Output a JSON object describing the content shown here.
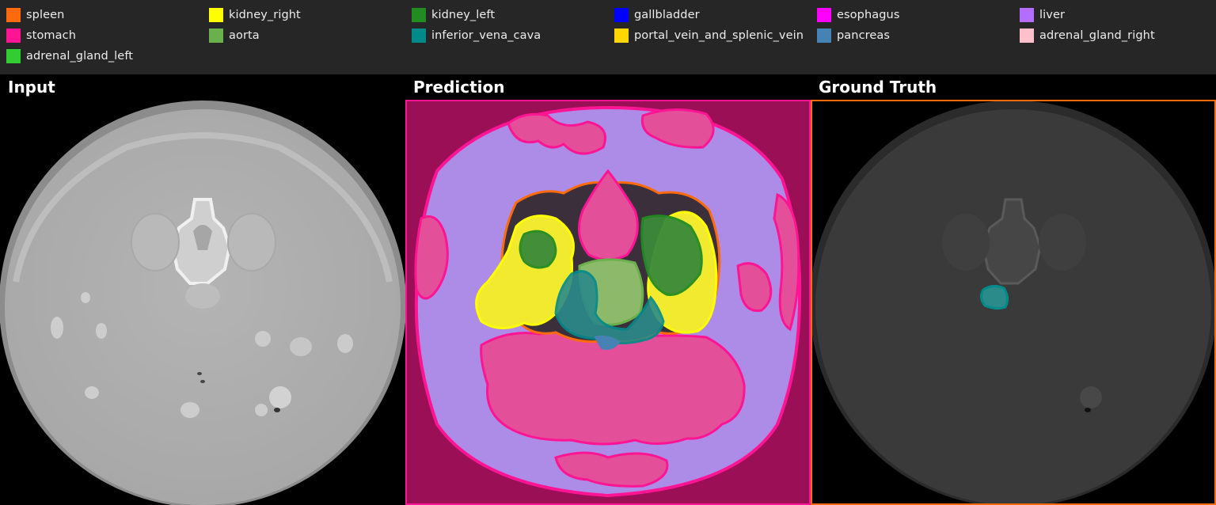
{
  "legend": {
    "items": [
      {
        "label": "spleen",
        "color": "#ff6a0d"
      },
      {
        "label": "kidney_right",
        "color": "#ffff00"
      },
      {
        "label": "kidney_left",
        "color": "#228b22"
      },
      {
        "label": "gallbladder",
        "color": "#0000ff"
      },
      {
        "label": "esophagus",
        "color": "#ff00ff"
      },
      {
        "label": "liver",
        "color": "#b46eff"
      },
      {
        "label": "stomach",
        "color": "#ff1493"
      },
      {
        "label": "aorta",
        "color": "#6ab04c"
      },
      {
        "label": "inferior_vena_cava",
        "color": "#008b8b"
      },
      {
        "label": "portal_vein_and_splenic_vein",
        "color": "#ffd700"
      },
      {
        "label": "pancreas",
        "color": "#4682b4"
      },
      {
        "label": "adrenal_gland_right",
        "color": "#ffc0cb"
      },
      {
        "label": "adrenal_gland_left",
        "color": "#32cd32"
      }
    ]
  },
  "panels": {
    "input": {
      "title": "Input"
    },
    "prediction": {
      "title": "Prediction",
      "border_color": "#ff1493"
    },
    "ground_truth": {
      "title": "Ground Truth",
      "border_color": "#ff6a0d"
    }
  }
}
